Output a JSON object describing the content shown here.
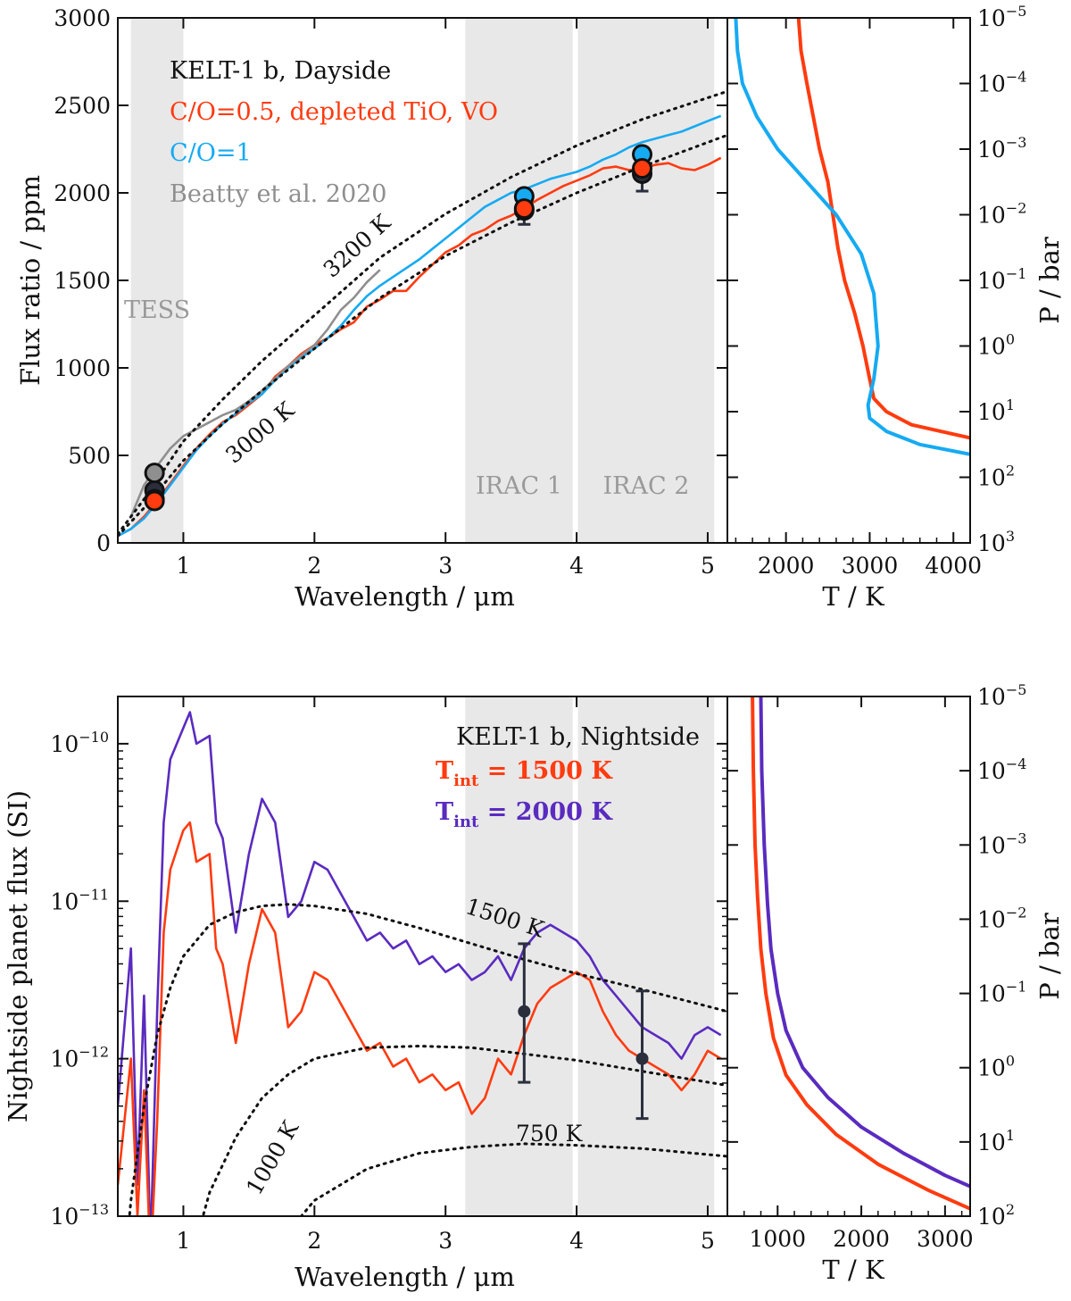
{
  "chart_data": [
    {
      "type": "line",
      "panel": "top-left",
      "xlabel": "Wavelength / μm",
      "ylabel": "Flux ratio / ppm",
      "xlim": [
        0.5,
        5.15
      ],
      "ylim": [
        0,
        3000
      ],
      "xticks": [
        1,
        2,
        3,
        4,
        5
      ],
      "yticks": [
        0,
        500,
        1000,
        1500,
        2000,
        2500,
        3000
      ],
      "shaded_bands": [
        {
          "name": "TESS",
          "range": [
            0.6,
            1.0
          ]
        },
        {
          "name": "IRAC 1",
          "range": [
            3.15,
            3.97
          ]
        },
        {
          "name": "IRAC 2",
          "range": [
            4.01,
            5.05
          ]
        }
      ],
      "legend": [
        {
          "label": "KELT-1 b, Dayside",
          "color": "#111111"
        },
        {
          "label": "C/O=0.5, depleted TiO, VO",
          "color": "#ff3b10"
        },
        {
          "label": "C/O=1",
          "color": "#16aaf2"
        },
        {
          "label": "Beatty et al. 2020",
          "color": "#8f8f8f"
        }
      ],
      "annotations": [
        "3200 K",
        "3000 K"
      ],
      "series": [
        {
          "name": "C/O=0.5, depleted TiO, VO",
          "color": "#ff3b10",
          "x": [
            0.5,
            0.6,
            0.7,
            0.8,
            0.9,
            1.0,
            1.1,
            1.2,
            1.3,
            1.4,
            1.5,
            1.6,
            1.7,
            1.8,
            1.9,
            2.0,
            2.1,
            2.2,
            2.3,
            2.4,
            2.5,
            2.6,
            2.7,
            2.8,
            2.9,
            3.0,
            3.1,
            3.2,
            3.3,
            3.4,
            3.5,
            3.6,
            3.7,
            3.8,
            3.9,
            4.0,
            4.1,
            4.2,
            4.3,
            4.4,
            4.5,
            4.6,
            4.7,
            4.8,
            4.9,
            5.0,
            5.1
          ],
          "y": [
            40,
            80,
            150,
            240,
            340,
            440,
            540,
            620,
            690,
            730,
            790,
            850,
            950,
            1010,
            1080,
            1130,
            1170,
            1220,
            1260,
            1350,
            1390,
            1440,
            1440,
            1520,
            1590,
            1660,
            1700,
            1760,
            1790,
            1840,
            1870,
            1910,
            1960,
            2000,
            2040,
            2070,
            2100,
            2140,
            2150,
            2130,
            2140,
            2160,
            2170,
            2140,
            2130,
            2160,
            2200
          ]
        },
        {
          "name": "C/O=1",
          "color": "#16aaf2",
          "x": [
            0.5,
            0.6,
            0.7,
            0.8,
            0.9,
            1.0,
            1.1,
            1.2,
            1.3,
            1.4,
            1.5,
            1.6,
            1.7,
            1.8,
            1.9,
            2.0,
            2.1,
            2.2,
            2.3,
            2.4,
            2.5,
            2.6,
            2.7,
            2.8,
            2.9,
            3.0,
            3.1,
            3.2,
            3.3,
            3.4,
            3.5,
            3.6,
            3.7,
            3.8,
            3.9,
            4.0,
            4.1,
            4.2,
            4.3,
            4.4,
            4.5,
            4.6,
            4.7,
            4.8,
            4.9,
            5.0,
            5.1
          ],
          "y": [
            40,
            80,
            140,
            230,
            330,
            430,
            530,
            610,
            680,
            740,
            800,
            850,
            930,
            1000,
            1060,
            1110,
            1170,
            1240,
            1330,
            1410,
            1470,
            1520,
            1570,
            1620,
            1680,
            1740,
            1800,
            1860,
            1920,
            1960,
            2000,
            2020,
            2050,
            2080,
            2100,
            2120,
            2150,
            2190,
            2220,
            2260,
            2290,
            2310,
            2330,
            2350,
            2380,
            2410,
            2440
          ]
        },
        {
          "name": "Beatty et al. 2020",
          "color": "#8f8f8f",
          "x": [
            0.6,
            0.7,
            0.8,
            0.9,
            1.0,
            1.1,
            1.2,
            1.3,
            1.4,
            1.5,
            1.6,
            1.7,
            1.8,
            1.9,
            2.0,
            2.1,
            2.2,
            2.3,
            2.4,
            2.5
          ],
          "y": [
            150,
            330,
            440,
            540,
            610,
            650,
            690,
            730,
            760,
            810,
            870,
            940,
            1010,
            1070,
            1130,
            1220,
            1330,
            1400,
            1490,
            1560
          ]
        },
        {
          "name": "3200 K",
          "color": "#111111",
          "dotted": true,
          "x": [
            0.5,
            0.7,
            1.0,
            1.3,
            1.6,
            2.0,
            2.5,
            3.0,
            3.5,
            4.0,
            4.5,
            5.15
          ],
          "y": [
            50,
            250,
            580,
            820,
            1040,
            1300,
            1630,
            1880,
            2090,
            2270,
            2420,
            2580
          ]
        },
        {
          "name": "3000 K",
          "color": "#111111",
          "dotted": true,
          "x": [
            0.5,
            0.7,
            1.0,
            1.3,
            1.6,
            2.0,
            2.5,
            3.0,
            3.5,
            4.0,
            4.5,
            5.15
          ],
          "y": [
            40,
            200,
            470,
            680,
            870,
            1110,
            1400,
            1640,
            1830,
            2000,
            2150,
            2330
          ]
        }
      ],
      "points": [
        {
          "name": "TESS data",
          "x": 0.78,
          "y": 300,
          "err": 80,
          "color": "#2a2e3d"
        },
        {
          "name": "TESS Beatty",
          "x": 0.78,
          "y": 400,
          "color": "#8f8f8f"
        },
        {
          "name": "TESS C/O=1",
          "x": 0.78,
          "y": 250,
          "color": "#16aaf2"
        },
        {
          "name": "TESS C/O=0.5",
          "x": 0.78,
          "y": 240,
          "color": "#ff3b10"
        },
        {
          "name": "IRAC1 data",
          "x": 3.6,
          "y": 1900,
          "err": 80,
          "color": "#2a2e3d"
        },
        {
          "name": "IRAC1 C/O=1",
          "x": 3.6,
          "y": 1980,
          "color": "#16aaf2"
        },
        {
          "name": "IRAC1 C/O=0.5",
          "x": 3.6,
          "y": 1910,
          "color": "#ff3b10"
        },
        {
          "name": "IRAC2 data",
          "x": 4.5,
          "y": 2110,
          "err": 100,
          "color": "#2a2e3d"
        },
        {
          "name": "IRAC2 C/O=1",
          "x": 4.5,
          "y": 2220,
          "color": "#16aaf2"
        },
        {
          "name": "IRAC2 C/O=0.5",
          "x": 4.5,
          "y": 2140,
          "color": "#ff3b10"
        }
      ]
    },
    {
      "type": "line",
      "panel": "top-right",
      "xlabel": "T / K",
      "ylabel": "P / bar",
      "xlim": [
        1300,
        4200
      ],
      "ylim_exp": [
        -5,
        3
      ],
      "xticks": [
        2000,
        3000,
        4000
      ],
      "yticks_exp": [
        -5,
        -4,
        -3,
        -2,
        -1,
        0,
        1,
        2,
        3
      ],
      "series": [
        {
          "name": "C/O=0.5, depleted TiO, VO",
          "color": "#ff3b10",
          "T": [
            2150,
            2180,
            2250,
            2400,
            2500,
            2560,
            2620,
            2700,
            2820,
            2920,
            3000,
            3050,
            3200,
            3500,
            4200
          ],
          "logP": [
            -5,
            -4.5,
            -4,
            -3,
            -2.5,
            -2,
            -1.5,
            -1,
            -0.5,
            0,
            0.5,
            0.8,
            1.0,
            1.2,
            1.4
          ]
        },
        {
          "name": "C/O=1",
          "color": "#16aaf2",
          "T": [
            1400,
            1420,
            1480,
            1650,
            1900,
            2250,
            2600,
            2900,
            3050,
            3100,
            3050,
            2980,
            3000,
            3200,
            3600,
            4200
          ],
          "logP": [
            -5,
            -4.5,
            -4,
            -3.5,
            -3,
            -2.5,
            -2,
            -1.4,
            -0.8,
            0,
            0.5,
            0.9,
            1.1,
            1.3,
            1.5,
            1.65
          ]
        }
      ]
    },
    {
      "type": "line",
      "panel": "bottom-left",
      "xlabel": "Wavelength / μm",
      "ylabel": "Nightside planet flux (SI)",
      "xlim": [
        0.5,
        5.15
      ],
      "ylog_exp": [
        -13,
        -9.7
      ],
      "xticks": [
        1,
        2,
        3,
        4,
        5
      ],
      "yticks_exp": [
        -13,
        -12,
        -11,
        -10
      ],
      "shaded_bands": [
        {
          "name": "IRAC 1",
          "range": [
            3.15,
            3.97
          ]
        },
        {
          "name": "IRAC 2",
          "range": [
            4.01,
            5.05
          ]
        }
      ],
      "legend": [
        {
          "label": "KELT-1 b, Nightside",
          "color": "#111111"
        },
        {
          "label": "T",
          "sub": "int",
          "value": " = 1500 K",
          "color": "#ff3b10"
        },
        {
          "label": "T",
          "sub": "int",
          "value": " = 2000 K",
          "color": "#5a2bbf"
        }
      ],
      "annotations": [
        "1500 K",
        "1000 K",
        "750 K"
      ],
      "series": [
        {
          "name": "Tint = 2000 K",
          "color": "#5a2bbf",
          "x": [
            0.5,
            0.6,
            0.65,
            0.7,
            0.75,
            0.8,
            0.85,
            0.9,
            1.0,
            1.05,
            1.1,
            1.2,
            1.25,
            1.3,
            1.4,
            1.5,
            1.6,
            1.7,
            1.8,
            1.9,
            2.0,
            2.1,
            2.2,
            2.3,
            2.4,
            2.5,
            2.6,
            2.7,
            2.8,
            2.9,
            3.0,
            3.1,
            3.2,
            3.3,
            3.4,
            3.5,
            3.6,
            3.7,
            3.8,
            3.9,
            4.0,
            4.1,
            4.2,
            4.3,
            4.4,
            4.5,
            4.6,
            4.7,
            4.8,
            4.9,
            5.0,
            5.1
          ],
          "y_exp": [
            -12.3,
            -11.3,
            -12.8,
            -11.6,
            -13.2,
            -11.7,
            -10.5,
            -10.1,
            -9.9,
            -9.8,
            -10.0,
            -9.95,
            -10.5,
            -10.6,
            -11.2,
            -10.7,
            -10.35,
            -10.5,
            -11.1,
            -11.0,
            -10.75,
            -10.8,
            -10.95,
            -11.1,
            -11.25,
            -11.2,
            -11.3,
            -11.25,
            -11.4,
            -11.35,
            -11.45,
            -11.4,
            -11.5,
            -11.45,
            -11.35,
            -11.5,
            -11.3,
            -11.2,
            -11.15,
            -11.2,
            -11.25,
            -11.35,
            -11.5,
            -11.6,
            -11.7,
            -11.8,
            -11.85,
            -11.9,
            -12.0,
            -11.85,
            -11.8,
            -11.85
          ]
        },
        {
          "name": "Tint = 1500 K",
          "color": "#ff3b10",
          "x": [
            0.5,
            0.6,
            0.65,
            0.7,
            0.75,
            0.8,
            0.85,
            0.9,
            1.0,
            1.05,
            1.1,
            1.2,
            1.25,
            1.3,
            1.4,
            1.5,
            1.6,
            1.7,
            1.8,
            1.9,
            2.0,
            2.1,
            2.2,
            2.3,
            2.4,
            2.5,
            2.6,
            2.7,
            2.8,
            2.9,
            3.0,
            3.1,
            3.2,
            3.3,
            3.4,
            3.5,
            3.6,
            3.7,
            3.8,
            3.9,
            4.0,
            4.1,
            4.2,
            4.3,
            4.4,
            4.5,
            4.6,
            4.7,
            4.8,
            4.9,
            5.0,
            5.1
          ],
          "y_exp": [
            -12.8,
            -12.0,
            -13.0,
            -12.2,
            -13.3,
            -12.4,
            -11.2,
            -10.8,
            -10.55,
            -10.5,
            -10.75,
            -10.7,
            -11.3,
            -11.4,
            -11.9,
            -11.4,
            -11.05,
            -11.2,
            -11.8,
            -11.7,
            -11.45,
            -11.5,
            -11.65,
            -11.8,
            -11.95,
            -11.9,
            -12.05,
            -12.0,
            -12.15,
            -12.1,
            -12.2,
            -12.15,
            -12.35,
            -12.25,
            -12.0,
            -12.1,
            -11.85,
            -11.65,
            -11.55,
            -11.5,
            -11.45,
            -11.5,
            -11.7,
            -11.85,
            -11.95,
            -12.0,
            -12.05,
            -12.1,
            -12.2,
            -12.1,
            -11.95,
            -12.0
          ]
        },
        {
          "name": "1500 K",
          "color": "#111111",
          "dotted": true,
          "x": [
            0.5,
            0.6,
            0.7,
            0.8,
            0.9,
            1.0,
            1.2,
            1.4,
            1.6,
            1.8,
            2.0,
            2.4,
            2.8,
            3.2,
            3.6,
            4.0,
            4.5,
            5.15
          ],
          "y_exp": [
            -13.8,
            -12.9,
            -12.3,
            -11.85,
            -11.55,
            -11.35,
            -11.15,
            -11.07,
            -11.03,
            -11.02,
            -11.03,
            -11.08,
            -11.17,
            -11.27,
            -11.37,
            -11.46,
            -11.56,
            -11.7
          ]
        },
        {
          "name": "1000 K",
          "color": "#111111",
          "dotted": true,
          "x": [
            0.95,
            1.0,
            1.2,
            1.4,
            1.6,
            1.8,
            2.0,
            2.4,
            2.8,
            3.2,
            3.6,
            4.0,
            4.5,
            5.15
          ],
          "y_exp": [
            -13.6,
            -13.45,
            -12.85,
            -12.5,
            -12.25,
            -12.1,
            -12.0,
            -11.93,
            -11.92,
            -11.93,
            -11.97,
            -12.01,
            -12.08,
            -12.17
          ]
        },
        {
          "name": "750 K",
          "color": "#111111",
          "dotted": true,
          "x": [
            1.65,
            1.8,
            2.0,
            2.4,
            2.8,
            3.2,
            3.6,
            4.0,
            4.5,
            5.15
          ],
          "y_exp": [
            -13.3,
            -13.1,
            -12.9,
            -12.7,
            -12.6,
            -12.56,
            -12.54,
            -12.55,
            -12.57,
            -12.62
          ]
        }
      ],
      "points": [
        {
          "name": "IRAC1 nightside",
          "x": 3.6,
          "y_exp": -11.7,
          "err_low_exp": -12.15,
          "err_high_exp": -11.27,
          "color": "#2a2e3d"
        },
        {
          "name": "IRAC2 nightside",
          "x": 4.5,
          "y_exp": -12.0,
          "err_low_exp": -12.38,
          "err_high_exp": -11.57,
          "color": "#2a2e3d"
        }
      ]
    },
    {
      "type": "line",
      "panel": "bottom-right",
      "xlabel": "T / K",
      "ylabel": "P / bar",
      "xlim": [
        400,
        3300
      ],
      "ylim_exp": [
        -5,
        2
      ],
      "xticks": [
        1000,
        2000,
        3000
      ],
      "yticks_exp": [
        -5,
        -4,
        -3,
        -2,
        -1,
        0,
        1,
        2
      ],
      "series": [
        {
          "name": "Tint = 1500 K",
          "color": "#ff3b10",
          "T": [
            700,
            710,
            730,
            760,
            800,
            860,
            950,
            1100,
            1350,
            1700,
            2200,
            2800,
            3300
          ],
          "logP": [
            -5,
            -4,
            -3,
            -2.3,
            -1.6,
            -1.0,
            -0.4,
            0.1,
            0.5,
            0.9,
            1.3,
            1.65,
            1.9
          ]
        },
        {
          "name": "Tint = 2000 K",
          "color": "#5a2bbf",
          "T": [
            800,
            810,
            840,
            880,
            920,
            1000,
            1100,
            1300,
            1600,
            2000,
            2500,
            3000,
            3300
          ],
          "logP": [
            -5,
            -4,
            -3,
            -2.2,
            -1.6,
            -1.0,
            -0.5,
            0,
            0.4,
            0.8,
            1.15,
            1.45,
            1.6
          ]
        }
      ]
    }
  ]
}
